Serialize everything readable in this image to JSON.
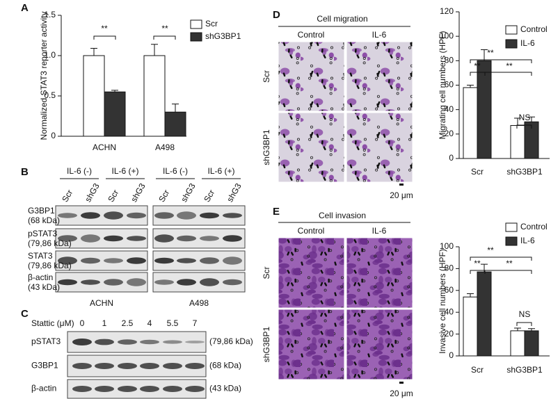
{
  "chart_data": [
    {
      "type": "bar",
      "panel": "A",
      "ylabel": "Normalized STAT3 reporter activity",
      "categories": [
        "ACHN",
        "A498"
      ],
      "series": [
        {
          "name": "Scr",
          "color": "#ffffff",
          "values": [
            1.0,
            1.0
          ],
          "errors": [
            0.09,
            0.14
          ]
        },
        {
          "name": "shG3BP1",
          "color": "#333333",
          "values": [
            0.55,
            0.3
          ],
          "errors": [
            0.02,
            0.1
          ]
        }
      ],
      "ylim": [
        0,
        1.5
      ],
      "yticks": [
        0,
        0.5,
        {
          "value": 1,
          "label": "1.0"
        },
        1.5
      ],
      "annotations": [
        "**",
        "**"
      ]
    },
    {
      "type": "bar",
      "panel": "D",
      "ylabel": "Migrating cell numbers (HPF)",
      "categories": [
        "Scr",
        "shG3BP1"
      ],
      "series": [
        {
          "name": "Control",
          "color": "#ffffff",
          "values": [
            58,
            27
          ],
          "errors": [
            2,
            6
          ]
        },
        {
          "name": "IL-6",
          "color": "#333333",
          "values": [
            80,
            30
          ],
          "errors": [
            9,
            4
          ]
        }
      ],
      "ylim": [
        0,
        120
      ],
      "yticks": [
        0,
        20,
        40,
        60,
        80,
        100,
        120
      ],
      "annotations": [
        "**",
        "**",
        "**",
        "NS"
      ]
    },
    {
      "type": "bar",
      "panel": "E",
      "ylabel": "Invasive cell numbers (HPF)",
      "categories": [
        "Scr",
        "shG3BP1"
      ],
      "series": [
        {
          "name": "Control",
          "color": "#ffffff",
          "values": [
            54,
            23
          ],
          "errors": [
            3,
            2.5
          ]
        },
        {
          "name": "IL-6",
          "color": "#333333",
          "values": [
            77,
            23
          ],
          "errors": [
            7,
            2
          ]
        }
      ],
      "ylim": [
        0,
        100
      ],
      "yticks": [
        0,
        20,
        40,
        60,
        80,
        100
      ],
      "annotations": [
        "**",
        "**",
        "**",
        "NS"
      ]
    }
  ],
  "blots": {
    "B": {
      "panel": "B",
      "conditions": [
        "IL-6 (-)",
        "IL-6 (+)"
      ],
      "lanes": [
        "Scr",
        "shG3",
        "Scr",
        "shG3"
      ],
      "rows": [
        [
          "G3BP1",
          "(68 kDa)"
        ],
        [
          "pSTAT3",
          "(79,86 kDa)"
        ],
        [
          "STAT3",
          "(79,86 kDa)"
        ],
        [
          "β-actin",
          "(43 kDa)"
        ]
      ],
      "cell_lines": [
        "ACHN",
        "A498"
      ]
    },
    "C": {
      "panel": "C",
      "treatment": "Stattic (μM)",
      "doses": [
        "0",
        "1",
        "2.5",
        "4",
        "5.5",
        "7"
      ],
      "rows": [
        {
          "protein": "pSTAT3",
          "size": "(79,86 kDa)"
        },
        {
          "protein": "G3BP1",
          "size": "(68 kDa)"
        },
        {
          "protein": "β-actin",
          "size": "(43 kDa)"
        }
      ]
    }
  },
  "micrographs": [
    {
      "panel": "D",
      "title": "Cell migration",
      "columns": [
        "Control",
        "IL-6"
      ],
      "rows": [
        "Scr",
        "shG3BP1"
      ],
      "scale_bar": "20 μm"
    },
    {
      "panel": "E",
      "title": "Cell invasion",
      "columns": [
        "Control",
        "IL-6"
      ],
      "rows": [
        "Scr",
        "shG3BP1"
      ],
      "scale_bar": "20 μm"
    }
  ]
}
